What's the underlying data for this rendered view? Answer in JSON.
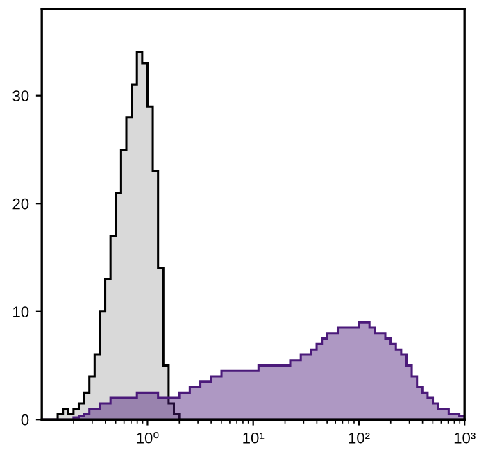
{
  "chart_data": {
    "type": "histogram",
    "bins": [
      0.1,
      0.1122,
      0.1259,
      0.1413,
      0.1585,
      0.1778,
      0.1995,
      0.2239,
      0.2512,
      0.2818,
      0.3162,
      0.3548,
      0.3981,
      0.4467,
      0.5012,
      0.5623,
      0.631,
      0.7079,
      0.7943,
      0.8913,
      1,
      1.122,
      1.259,
      1.413,
      1.585,
      1.778,
      1.995,
      2.239,
      2.512,
      2.818,
      3.162,
      3.548,
      3.981,
      4.467,
      5.012,
      5.623,
      6.31,
      7.079,
      7.943,
      8.913,
      10,
      11.22,
      12.59,
      14.13,
      15.85,
      17.78,
      19.95,
      22.39,
      25.12,
      28.18,
      31.62,
      35.48,
      39.81,
      44.67,
      50.12,
      56.23,
      63.1,
      70.79,
      79.43,
      89.13,
      100,
      112.2,
      125.9,
      141.3,
      158.5,
      177.8,
      199.5,
      223.9,
      251.2,
      281.8,
      316.2,
      354.8,
      398.1,
      446.7,
      501.2,
      562.3,
      631,
      707.9,
      794.3,
      891.3,
      1000
    ],
    "series": [
      {
        "color": "#000000",
        "values": [
          0,
          0,
          0,
          0.5,
          1,
          0.5,
          1,
          1.5,
          2.5,
          4,
          6,
          10,
          13,
          17,
          21,
          25,
          28,
          31,
          34,
          33,
          29,
          23,
          14,
          5,
          1.5,
          0.5,
          0,
          0,
          0,
          0,
          0,
          0,
          0,
          0,
          0,
          0,
          0,
          0,
          0,
          0,
          0,
          0,
          0,
          0,
          0,
          0,
          0,
          0,
          0,
          0,
          0,
          0,
          0,
          0,
          0,
          0,
          0,
          0,
          0,
          0,
          0,
          0,
          0,
          0,
          0,
          0,
          0,
          0,
          0,
          0,
          0,
          0,
          0,
          0,
          0,
          0,
          0,
          0,
          0,
          0
        ]
      },
      {
        "color": "#4b1a7a",
        "values": [
          0,
          0,
          0,
          0,
          0,
          0,
          0.2,
          0.3,
          0.5,
          1,
          1,
          1.5,
          1.5,
          2,
          2,
          2,
          2,
          2,
          2.5,
          2.5,
          2.5,
          2.5,
          2,
          2,
          2,
          2,
          2.5,
          2.5,
          3,
          3,
          3.5,
          3.5,
          4,
          4,
          4.5,
          4.5,
          4.5,
          4.5,
          4.5,
          4.5,
          4.5,
          5,
          5,
          5,
          5,
          5,
          5,
          5.5,
          5.5,
          6,
          6,
          6.5,
          7,
          7.5,
          8,
          8,
          8.5,
          8.5,
          8.5,
          8.5,
          9,
          9,
          8.5,
          8,
          8,
          7.5,
          7,
          6.5,
          6,
          5,
          4,
          3,
          2.5,
          2,
          1.5,
          1,
          1,
          0.5,
          0.5,
          0.3
        ]
      }
    ],
    "log": "x",
    "xlim": [
      0.1,
      1000
    ],
    "xticks": [
      {
        "value": 1,
        "label": "10⁰"
      },
      {
        "value": 10,
        "label": "10¹"
      },
      {
        "value": 100,
        "label": "10²"
      },
      {
        "value": 1000,
        "label": "10³"
      }
    ],
    "ylim": [
      0,
      38
    ],
    "yticks": [
      0,
      10,
      20,
      30
    ],
    "grid": false
  }
}
